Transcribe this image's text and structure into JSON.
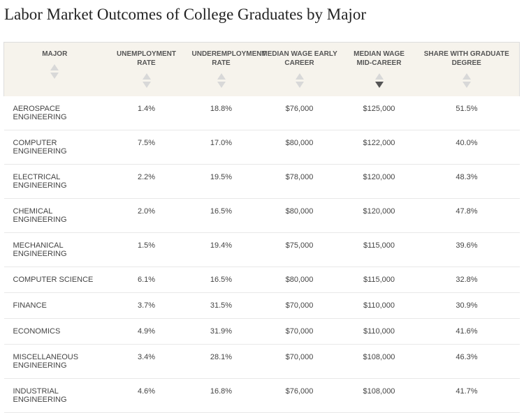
{
  "title": "Labor Market Outcomes of College Graduates by Major",
  "table": {
    "columns": [
      "MAJOR",
      "UNEMPLOYMENT RATE",
      "UNDEREMPLOYMENT RATE",
      "MEDIAN WAGE EARLY CAREER",
      "MEDIAN WAGE MID-CAREER",
      "SHARE WITH GRADUATE DEGREE"
    ],
    "sort": {
      "column": 4,
      "direction": "descending"
    },
    "rows": [
      [
        "AEROSPACE ENGINEERING",
        "1.4%",
        "18.8%",
        "$76,000",
        "$125,000",
        "51.5%"
      ],
      [
        "COMPUTER ENGINEERING",
        "7.5%",
        "17.0%",
        "$80,000",
        "$122,000",
        "40.0%"
      ],
      [
        "ELECTRICAL ENGINEERING",
        "2.2%",
        "19.5%",
        "$78,000",
        "$120,000",
        "48.3%"
      ],
      [
        "CHEMICAL ENGINEERING",
        "2.0%",
        "16.5%",
        "$80,000",
        "$120,000",
        "47.8%"
      ],
      [
        "MECHANICAL ENGINEERING",
        "1.5%",
        "19.4%",
        "$75,000",
        "$115,000",
        "39.6%"
      ],
      [
        "COMPUTER SCIENCE",
        "6.1%",
        "16.5%",
        "$80,000",
        "$115,000",
        "32.8%"
      ],
      [
        "FINANCE",
        "3.7%",
        "31.5%",
        "$70,000",
        "$110,000",
        "30.9%"
      ],
      [
        "ECONOMICS",
        "4.9%",
        "31.9%",
        "$70,000",
        "$110,000",
        "41.6%"
      ],
      [
        "MISCELLANEOUS ENGINEERING",
        "3.4%",
        "28.1%",
        "$70,000",
        "$108,000",
        "46.3%"
      ],
      [
        "INDUSTRIAL ENGINEERING",
        "4.6%",
        "16.8%",
        "$76,000",
        "$108,000",
        "41.7%"
      ]
    ]
  }
}
